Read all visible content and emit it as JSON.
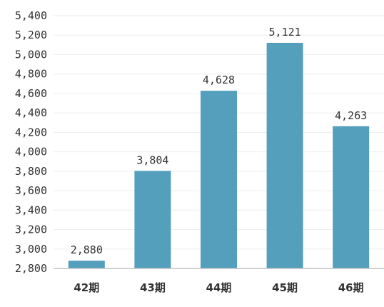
{
  "chart_data": {
    "type": "bar",
    "categories": [
      "42期",
      "43期",
      "44期",
      "45期",
      "46期"
    ],
    "values": [
      2880,
      3804,
      4628,
      5121,
      4263
    ],
    "data_labels": [
      "2,880",
      "3,804",
      "4,628",
      "5,121",
      "4,263"
    ],
    "title": "",
    "xlabel": "",
    "ylabel": "",
    "ylim": [
      2800,
      5400
    ],
    "yticks": [
      2800,
      3000,
      3200,
      3400,
      3600,
      3800,
      4000,
      4200,
      4400,
      4600,
      4800,
      5000,
      5200,
      5400
    ],
    "ytick_labels": [
      "2,800",
      "3,000",
      "3,200",
      "3,400",
      "3,600",
      "3,800",
      "4,000",
      "4,200",
      "4,400",
      "4,600",
      "4,800",
      "5,000",
      "5,200",
      "5,400"
    ],
    "grid": true,
    "legend": "none",
    "bar_color": "#539fbc"
  }
}
